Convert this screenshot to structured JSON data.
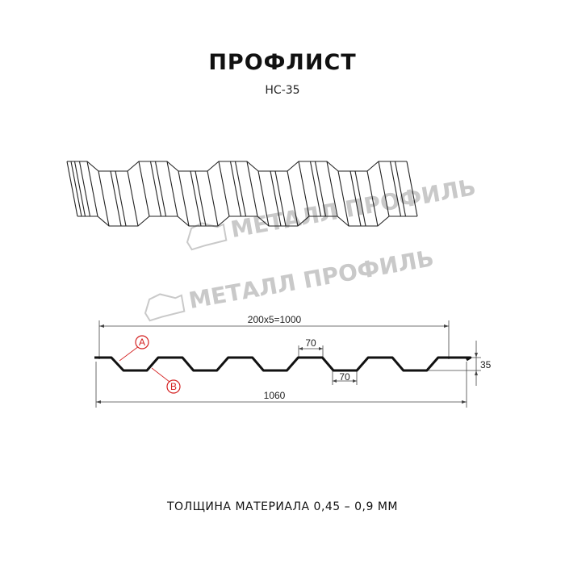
{
  "header": {
    "title": "ПРОФЛИСТ",
    "subtitle": "НС-35"
  },
  "watermark": {
    "text": "МЕТАЛЛ ПРОФИЛЬ"
  },
  "drawing": {
    "pitch_label": "200x5=1000",
    "width_label": "1060",
    "height_label": "35",
    "top_width_label": "70",
    "bottom_width_label": "70",
    "side_a_label": "A",
    "side_b_label": "B",
    "profile_color": "#111111",
    "marker_color": "#d42020"
  },
  "footer": {
    "thickness": "ТОЛЩИНА МАТЕРИАЛА 0,45 – 0,9 ММ"
  }
}
